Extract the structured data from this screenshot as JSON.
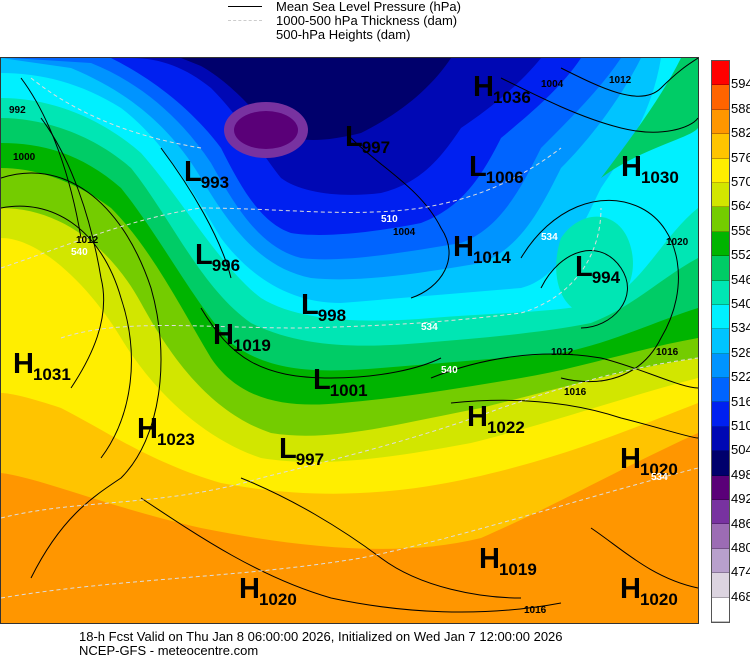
{
  "legend": {
    "mslp": "Mean Sea Level Pressure (hPa)",
    "thickness": "1000-500 hPa Thickness (dam)",
    "heights": "500-hPa Heights (dam)"
  },
  "colorbar": {
    "labels": [
      "594",
      "588",
      "582",
      "576",
      "570",
      "564",
      "558",
      "552",
      "546",
      "540",
      "534",
      "528",
      "522",
      "516",
      "510",
      "504",
      "498",
      "492",
      "486",
      "480",
      "474",
      "468"
    ],
    "colors": [
      "#ff0000",
      "#ff6400",
      "#ff9600",
      "#ffc400",
      "#ffee00",
      "#d2e600",
      "#74cc00",
      "#00b400",
      "#00cc66",
      "#00e6b4",
      "#00f0ff",
      "#00c4ff",
      "#0094ff",
      "#0064ff",
      "#0020f0",
      "#0008b4",
      "#00006c",
      "#5a0078",
      "#7832a0",
      "#9c6cb4",
      "#b8a0cc",
      "#dcd4e0",
      "#ffffff"
    ]
  },
  "systems": [
    {
      "letter": "H",
      "value": "1036"
    },
    {
      "letter": "L",
      "value": "997"
    },
    {
      "letter": "L",
      "value": "1006"
    },
    {
      "letter": "H",
      "value": "1030"
    },
    {
      "letter": "L",
      "value": "993"
    },
    {
      "letter": "H",
      "value": "1014"
    },
    {
      "letter": "L",
      "value": "994"
    },
    {
      "letter": "L",
      "value": "996"
    },
    {
      "letter": "L",
      "value": "998"
    },
    {
      "letter": "H",
      "value": "1019"
    },
    {
      "letter": "H",
      "value": "1031"
    },
    {
      "letter": "L",
      "value": "1001"
    },
    {
      "letter": "H",
      "value": "1023"
    },
    {
      "letter": "H",
      "value": "1022"
    },
    {
      "letter": "L",
      "value": "997"
    },
    {
      "letter": "H",
      "value": "1020"
    },
    {
      "letter": "H",
      "value": "1019"
    },
    {
      "letter": "H",
      "value": "1020"
    },
    {
      "letter": "H",
      "value": "1020"
    }
  ],
  "contour_labels": [
    "1012",
    "1004",
    "510",
    "534",
    "540",
    "1012",
    "1016",
    "1016",
    "1020",
    "534",
    "1016",
    "992",
    "1000",
    "1012",
    "540",
    "534",
    "1004"
  ],
  "footer": {
    "line1": "18-h Fcst Valid on Thu Jan  8 06:00:00 2026, Initialized on Wed Jan  7 12:00:00 2026",
    "line2": "NCEP-GFS  - meteocentre.com"
  }
}
